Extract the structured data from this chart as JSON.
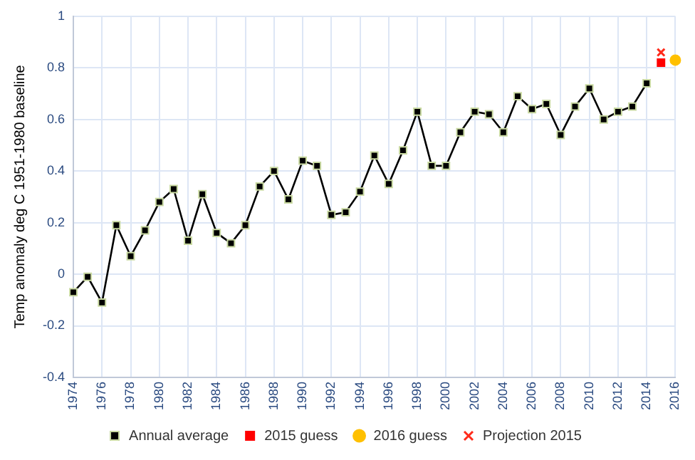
{
  "chart_data": {
    "type": "line",
    "ylabel": "Temp anomaly deg C 1951-1980 baseline",
    "categories": [
      "1974",
      null,
      "1976",
      null,
      "1978",
      null,
      "1980",
      null,
      "1982",
      null,
      "1984",
      null,
      "1986",
      null,
      "1988",
      null,
      "1990",
      null,
      "1992",
      null,
      "1994",
      null,
      "1996",
      null,
      "1998",
      null,
      "2000",
      null,
      "2002",
      null,
      "2004",
      null,
      "2006",
      null,
      "2008",
      null,
      "2010",
      null,
      "2012",
      null,
      "2014",
      null,
      "2016"
    ],
    "series": [
      {
        "name": "Annual average",
        "color": "#000000",
        "marker": "square",
        "values": [
          -0.07,
          -0.01,
          -0.11,
          0.19,
          0.07,
          0.17,
          0.28,
          0.33,
          0.13,
          0.31,
          0.16,
          0.12,
          0.19,
          0.34,
          0.4,
          0.29,
          0.44,
          0.42,
          0.23,
          0.24,
          0.32,
          0.46,
          0.35,
          0.48,
          0.63,
          0.42,
          0.42,
          0.55,
          0.63,
          0.62,
          0.55,
          0.69,
          0.64,
          0.66,
          0.54,
          0.65,
          0.72,
          0.6,
          0.63,
          0.65,
          0.74,
          null,
          null
        ]
      },
      {
        "name": "2015 guess",
        "color": "#ff0000",
        "marker": "square",
        "values": [
          null,
          null,
          null,
          null,
          null,
          null,
          null,
          null,
          null,
          null,
          null,
          null,
          null,
          null,
          null,
          null,
          null,
          null,
          null,
          null,
          null,
          null,
          null,
          null,
          null,
          null,
          null,
          null,
          null,
          null,
          null,
          null,
          null,
          null,
          null,
          null,
          null,
          null,
          null,
          null,
          null,
          0.82,
          null
        ]
      },
      {
        "name": "2016 guess",
        "color": "#ffc000",
        "marker": "circle",
        "values": [
          null,
          null,
          null,
          null,
          null,
          null,
          null,
          null,
          null,
          null,
          null,
          null,
          null,
          null,
          null,
          null,
          null,
          null,
          null,
          null,
          null,
          null,
          null,
          null,
          null,
          null,
          null,
          null,
          null,
          null,
          null,
          null,
          null,
          null,
          null,
          null,
          null,
          null,
          null,
          null,
          null,
          null,
          0.83
        ]
      },
      {
        "name": "Projection 2015",
        "color": "#ff2a1a",
        "marker": "cross",
        "values": [
          null,
          null,
          null,
          null,
          null,
          null,
          null,
          null,
          null,
          null,
          null,
          null,
          null,
          null,
          null,
          null,
          null,
          null,
          null,
          null,
          null,
          null,
          null,
          null,
          null,
          null,
          null,
          null,
          null,
          null,
          null,
          null,
          null,
          null,
          null,
          null,
          null,
          null,
          null,
          null,
          null,
          0.86,
          null
        ]
      }
    ],
    "ylim": [
      -0.4,
      1
    ],
    "yticks": [
      -0.4,
      -0.2,
      0,
      0.2,
      0.4,
      0.6,
      0.8,
      1
    ],
    "grid": true,
    "legend": "bottom"
  }
}
